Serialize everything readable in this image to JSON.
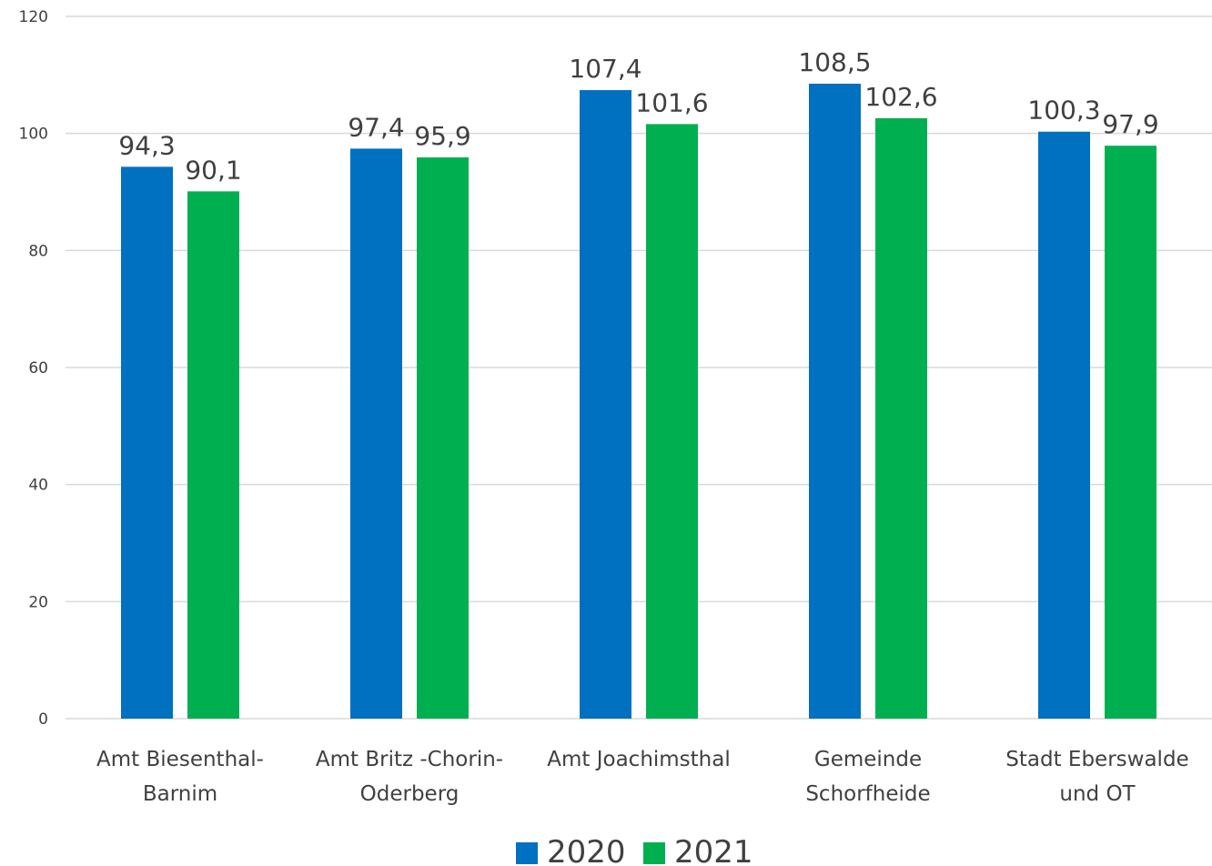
{
  "chart_data": {
    "type": "bar",
    "categories": [
      [
        "Amt Biesenthal-",
        "Barnim"
      ],
      [
        "Amt Britz -Chorin-",
        "Oderberg"
      ],
      [
        "Amt Joachimsthal"
      ],
      [
        "Gemeinde",
        "Schorfheide"
      ],
      [
        "Stadt Eberswalde",
        "und OT"
      ]
    ],
    "series": [
      {
        "name": "2020",
        "color": "#0070C0",
        "values": [
          94.3,
          97.4,
          107.4,
          108.5,
          100.3
        ],
        "labels": [
          "94,3",
          "97,4",
          "107,4",
          "108,5",
          "100,3"
        ]
      },
      {
        "name": "2021",
        "color": "#00B050",
        "values": [
          90.1,
          95.9,
          101.6,
          102.6,
          97.9
        ],
        "labels": [
          "90,1",
          "95,9",
          "101,6",
          "102,6",
          "97,9"
        ]
      }
    ],
    "ylim": [
      0,
      120
    ],
    "yticks": [
      "0",
      "20",
      "40",
      "60",
      "80",
      "100",
      "120"
    ],
    "grid": true,
    "legend_position": "bottom",
    "title": "",
    "xlabel": "",
    "ylabel": ""
  }
}
